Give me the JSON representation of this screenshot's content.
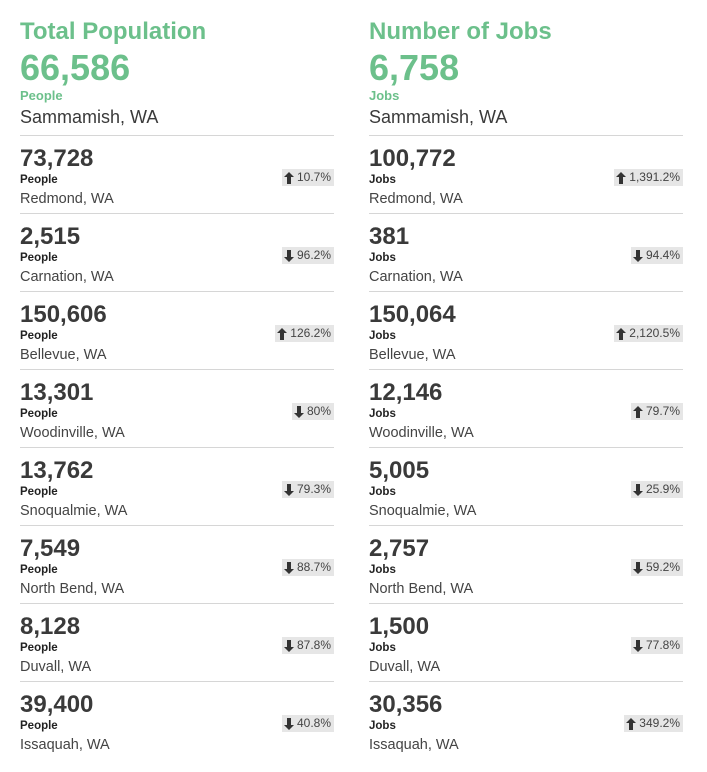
{
  "population": {
    "title": "Total Population",
    "value": "66,586",
    "unit": "People",
    "place": "Sammamish, WA",
    "items": [
      {
        "value": "73,728",
        "unit": "People",
        "place": "Redmond, WA",
        "direction": "up",
        "change": "10.7%"
      },
      {
        "value": "2,515",
        "unit": "People",
        "place": "Carnation, WA",
        "direction": "down",
        "change": "96.2%"
      },
      {
        "value": "150,606",
        "unit": "People",
        "place": "Bellevue, WA",
        "direction": "up",
        "change": "126.2%"
      },
      {
        "value": "13,301",
        "unit": "People",
        "place": "Woodinville, WA",
        "direction": "down",
        "change": "80%"
      },
      {
        "value": "13,762",
        "unit": "People",
        "place": "Snoqualmie, WA",
        "direction": "down",
        "change": "79.3%"
      },
      {
        "value": "7,549",
        "unit": "People",
        "place": "North Bend, WA",
        "direction": "down",
        "change": "88.7%"
      },
      {
        "value": "8,128",
        "unit": "People",
        "place": "Duvall, WA",
        "direction": "down",
        "change": "87.8%"
      },
      {
        "value": "39,400",
        "unit": "People",
        "place": "Issaquah, WA",
        "direction": "down",
        "change": "40.8%"
      }
    ]
  },
  "jobs": {
    "title": "Number of Jobs",
    "value": "6,758",
    "unit": "Jobs",
    "place": "Sammamish, WA",
    "items": [
      {
        "value": "100,772",
        "unit": "Jobs",
        "place": "Redmond, WA",
        "direction": "up",
        "change": "1,391.2%"
      },
      {
        "value": "381",
        "unit": "Jobs",
        "place": "Carnation, WA",
        "direction": "down",
        "change": "94.4%"
      },
      {
        "value": "150,064",
        "unit": "Jobs",
        "place": "Bellevue, WA",
        "direction": "up",
        "change": "2,120.5%"
      },
      {
        "value": "12,146",
        "unit": "Jobs",
        "place": "Woodinville, WA",
        "direction": "up",
        "change": "79.7%"
      },
      {
        "value": "5,005",
        "unit": "Jobs",
        "place": "Snoqualmie, WA",
        "direction": "down",
        "change": "25.9%"
      },
      {
        "value": "2,757",
        "unit": "Jobs",
        "place": "North Bend, WA",
        "direction": "down",
        "change": "59.2%"
      },
      {
        "value": "1,500",
        "unit": "Jobs",
        "place": "Duvall, WA",
        "direction": "down",
        "change": "77.8%"
      },
      {
        "value": "30,356",
        "unit": "Jobs",
        "place": "Issaquah, WA",
        "direction": "up",
        "change": "349.2%"
      }
    ]
  },
  "colors": {
    "accent": "#6cc08b",
    "text": "#3a3a3a",
    "badge_bg": "#e6e6e6",
    "divider": "#d6d6d6"
  },
  "icons": {
    "up": "arrow-up-icon",
    "down": "arrow-down-icon"
  }
}
